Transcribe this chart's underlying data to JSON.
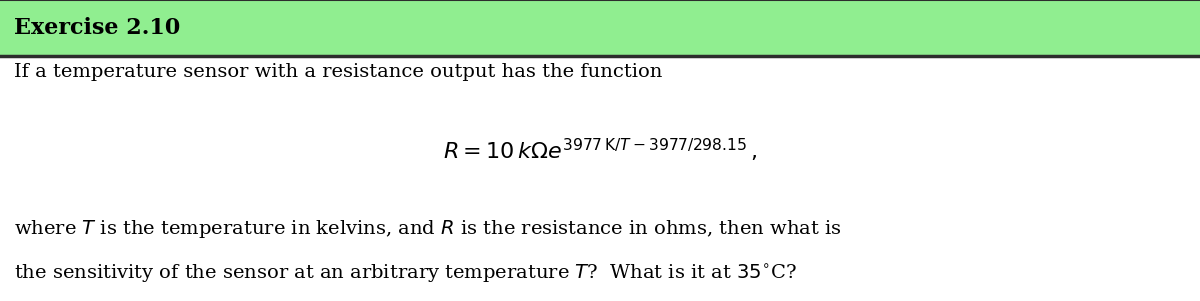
{
  "title": "Exercise 2.10",
  "header_bg_color": "#90EE90",
  "header_text_color": "#000000",
  "body_bg_color": "#ffffff",
  "border_color": "#2d2d2d",
  "header_fontsize": 16,
  "body_fontsize": 14,
  "line1": "If a temperature sensor with a resistance output has the function",
  "line3": "where $T$ is the temperature in kelvins, and $R$ is the resistance in ohms, then what is",
  "line4": "the sensitivity of the sensor at an arbitrary temperature $T$?  What is it at $35^{\\circ}$C?"
}
